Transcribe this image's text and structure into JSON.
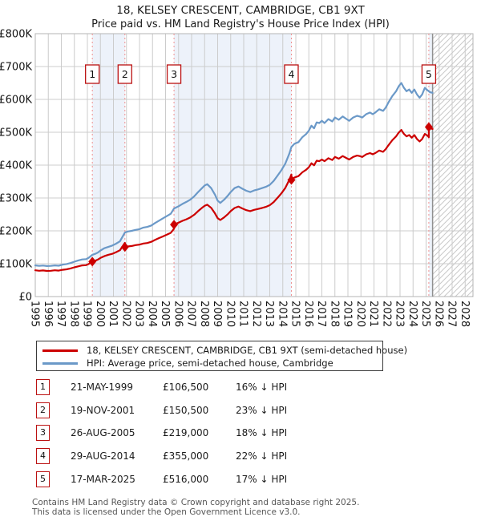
{
  "chart_data": {
    "type": "line",
    "title": "18, KELSEY CRESCENT, CAMBRIDGE, CB1 9XT",
    "subtitle": "Price paid vs. HM Land Registry's House Price Index (HPI)",
    "x_range": [
      1995,
      2028.6
    ],
    "ylim_gbp_thousands": [
      0,
      800
    ],
    "grid": true,
    "legend_position": "below",
    "x_ticks": [
      1995,
      1996,
      1997,
      1998,
      1999,
      2000,
      2001,
      2002,
      2003,
      2004,
      2005,
      2006,
      2007,
      2008,
      2009,
      2010,
      2011,
      2012,
      2013,
      2014,
      2015,
      2016,
      2017,
      2018,
      2019,
      2020,
      2021,
      2022,
      2023,
      2024,
      2025,
      2026,
      2027,
      2028
    ],
    "y_ticks": [
      {
        "value": 0,
        "label": "£0"
      },
      {
        "value": 100,
        "label": "£100K"
      },
      {
        "value": 200,
        "label": "£200K"
      },
      {
        "value": 300,
        "label": "£300K"
      },
      {
        "value": 400,
        "label": "£400K"
      },
      {
        "value": 500,
        "label": "£500K"
      },
      {
        "value": 600,
        "label": "£600K"
      },
      {
        "value": 700,
        "label": "£700K"
      },
      {
        "value": 800,
        "label": "£800K"
      }
    ],
    "ownership_bands": [
      [
        1999.38,
        2001.88
      ],
      [
        2005.65,
        2014.66
      ],
      [
        2025.21,
        2025.5
      ]
    ],
    "end_of_data_x": 2025.5,
    "future_hatch_start": 2025.5,
    "sale_markers": [
      {
        "n": "1",
        "x": 1999.38,
        "price_k": 106.5
      },
      {
        "n": "2",
        "x": 2001.88,
        "price_k": 150.5
      },
      {
        "n": "3",
        "x": 2005.65,
        "price_k": 219
      },
      {
        "n": "4",
        "x": 2014.66,
        "price_k": 355
      },
      {
        "n": "5",
        "x": 2025.21,
        "price_k": 516
      }
    ],
    "series": [
      {
        "name": "HPI: Average price, semi-detached house, Cambridge",
        "color": "#6b99c8",
        "points": [
          [
            1995.0,
            95
          ],
          [
            1995.3,
            93.5
          ],
          [
            1995.6,
            94.5
          ],
          [
            1995.9,
            93
          ],
          [
            1996.2,
            93.5
          ],
          [
            1996.5,
            95
          ],
          [
            1996.8,
            94
          ],
          [
            1997.1,
            97
          ],
          [
            1997.4,
            99
          ],
          [
            1997.7,
            102
          ],
          [
            1998.0,
            106
          ],
          [
            1998.3,
            110
          ],
          [
            1998.6,
            113
          ],
          [
            1998.9,
            114
          ],
          [
            1999.1,
            118
          ],
          [
            1999.38,
            127
          ],
          [
            1999.6,
            130
          ],
          [
            1999.8,
            134
          ],
          [
            2000.0,
            140
          ],
          [
            2000.3,
            147
          ],
          [
            2000.6,
            151
          ],
          [
            2000.9,
            155
          ],
          [
            2001.2,
            161
          ],
          [
            2001.5,
            168
          ],
          [
            2001.88,
            195
          ],
          [
            2002.1,
            198
          ],
          [
            2002.4,
            200
          ],
          [
            2002.7,
            203
          ],
          [
            2003.0,
            205
          ],
          [
            2003.3,
            210
          ],
          [
            2003.6,
            212
          ],
          [
            2003.9,
            216
          ],
          [
            2004.2,
            224
          ],
          [
            2004.5,
            231
          ],
          [
            2004.8,
            238
          ],
          [
            2005.1,
            245
          ],
          [
            2005.4,
            252
          ],
          [
            2005.65,
            268
          ],
          [
            2006.0,
            275
          ],
          [
            2006.3,
            282
          ],
          [
            2006.6,
            288
          ],
          [
            2006.9,
            295
          ],
          [
            2007.2,
            305
          ],
          [
            2007.5,
            318
          ],
          [
            2007.8,
            330
          ],
          [
            2008.0,
            338
          ],
          [
            2008.2,
            342
          ],
          [
            2008.5,
            330
          ],
          [
            2008.8,
            310
          ],
          [
            2009.0,
            292
          ],
          [
            2009.2,
            285
          ],
          [
            2009.5,
            295
          ],
          [
            2009.8,
            308
          ],
          [
            2010.0,
            318
          ],
          [
            2010.3,
            330
          ],
          [
            2010.6,
            335
          ],
          [
            2010.9,
            328
          ],
          [
            2011.2,
            322
          ],
          [
            2011.5,
            318
          ],
          [
            2011.8,
            323
          ],
          [
            2012.1,
            326
          ],
          [
            2012.4,
            330
          ],
          [
            2012.7,
            334
          ],
          [
            2013.0,
            340
          ],
          [
            2013.3,
            352
          ],
          [
            2013.6,
            368
          ],
          [
            2013.9,
            385
          ],
          [
            2014.2,
            405
          ],
          [
            2014.5,
            435
          ],
          [
            2014.66,
            455
          ],
          [
            2014.9,
            465
          ],
          [
            2015.2,
            470
          ],
          [
            2015.5,
            485
          ],
          [
            2015.8,
            495
          ],
          [
            2016.0,
            505
          ],
          [
            2016.2,
            520
          ],
          [
            2016.4,
            512
          ],
          [
            2016.6,
            530
          ],
          [
            2016.8,
            528
          ],
          [
            2017.0,
            535
          ],
          [
            2017.2,
            528
          ],
          [
            2017.5,
            540
          ],
          [
            2017.8,
            533
          ],
          [
            2018.0,
            545
          ],
          [
            2018.3,
            538
          ],
          [
            2018.6,
            548
          ],
          [
            2018.9,
            540
          ],
          [
            2019.1,
            535
          ],
          [
            2019.4,
            545
          ],
          [
            2019.7,
            550
          ],
          [
            2019.9,
            548
          ],
          [
            2020.1,
            545
          ],
          [
            2020.4,
            555
          ],
          [
            2020.7,
            560
          ],
          [
            2020.9,
            555
          ],
          [
            2021.1,
            560
          ],
          [
            2021.4,
            570
          ],
          [
            2021.7,
            565
          ],
          [
            2021.9,
            575
          ],
          [
            2022.1,
            590
          ],
          [
            2022.4,
            610
          ],
          [
            2022.7,
            625
          ],
          [
            2022.9,
            640
          ],
          [
            2023.1,
            650
          ],
          [
            2023.3,
            635
          ],
          [
            2023.5,
            625
          ],
          [
            2023.7,
            630
          ],
          [
            2023.9,
            620
          ],
          [
            2024.1,
            630
          ],
          [
            2024.3,
            615
          ],
          [
            2024.5,
            605
          ],
          [
            2024.7,
            615
          ],
          [
            2024.9,
            635
          ],
          [
            2025.1,
            628
          ],
          [
            2025.3,
            622
          ],
          [
            2025.5,
            620
          ]
        ]
      },
      {
        "name": "18, KELSEY CRESCENT, CAMBRIDGE, CB1 9XT (semi-detached house)",
        "color": "#cc0000",
        "points": [
          [
            1995.0,
            80
          ],
          [
            1995.3,
            78.5
          ],
          [
            1995.6,
            79.5
          ],
          [
            1995.9,
            78
          ],
          [
            1996.2,
            78.5
          ],
          [
            1996.5,
            80
          ],
          [
            1996.8,
            79
          ],
          [
            1997.1,
            81.5
          ],
          [
            1997.4,
            83
          ],
          [
            1997.7,
            85.5
          ],
          [
            1998.0,
            89
          ],
          [
            1998.3,
            92
          ],
          [
            1998.6,
            95
          ],
          [
            1998.9,
            95.5
          ],
          [
            1999.1,
            99
          ],
          [
            1999.38,
            106.5
          ],
          [
            1999.6,
            109
          ],
          [
            1999.8,
            112.5
          ],
          [
            2000.0,
            117.5
          ],
          [
            2000.3,
            123
          ],
          [
            2000.6,
            127
          ],
          [
            2000.9,
            130
          ],
          [
            2001.2,
            135
          ],
          [
            2001.5,
            141
          ],
          [
            2001.88,
            163.5
          ],
          [
            2001.88,
            150.5
          ],
          [
            2002.1,
            152.5
          ],
          [
            2002.4,
            154
          ],
          [
            2002.7,
            156.5
          ],
          [
            2003.0,
            158
          ],
          [
            2003.3,
            161.5
          ],
          [
            2003.6,
            163
          ],
          [
            2003.9,
            166.5
          ],
          [
            2004.2,
            172.5
          ],
          [
            2004.5,
            178
          ],
          [
            2004.8,
            183
          ],
          [
            2005.1,
            188.5
          ],
          [
            2005.4,
            194
          ],
          [
            2005.65,
            206.5
          ],
          [
            2005.65,
            219
          ],
          [
            2006.0,
            225
          ],
          [
            2006.3,
            230.5
          ],
          [
            2006.6,
            235
          ],
          [
            2006.9,
            241
          ],
          [
            2007.2,
            249
          ],
          [
            2007.5,
            260
          ],
          [
            2007.8,
            270
          ],
          [
            2008.0,
            276
          ],
          [
            2008.2,
            279.5
          ],
          [
            2008.5,
            270
          ],
          [
            2008.8,
            253
          ],
          [
            2009.0,
            238.5
          ],
          [
            2009.2,
            233
          ],
          [
            2009.5,
            241
          ],
          [
            2009.8,
            251.5
          ],
          [
            2010.0,
            260
          ],
          [
            2010.3,
            269.5
          ],
          [
            2010.6,
            274
          ],
          [
            2010.9,
            268
          ],
          [
            2011.2,
            263
          ],
          [
            2011.5,
            260
          ],
          [
            2011.8,
            264
          ],
          [
            2012.1,
            266.5
          ],
          [
            2012.4,
            269.5
          ],
          [
            2012.7,
            273
          ],
          [
            2013.0,
            278
          ],
          [
            2013.3,
            287.5
          ],
          [
            2013.6,
            300.5
          ],
          [
            2013.9,
            314.5
          ],
          [
            2014.2,
            331
          ],
          [
            2014.5,
            355
          ],
          [
            2014.66,
            371.5
          ],
          [
            2014.66,
            355
          ],
          [
            2014.9,
            362.5
          ],
          [
            2015.2,
            366.5
          ],
          [
            2015.5,
            378
          ],
          [
            2015.8,
            386
          ],
          [
            2016.0,
            394
          ],
          [
            2016.2,
            405.5
          ],
          [
            2016.4,
            399.5
          ],
          [
            2016.6,
            413.5
          ],
          [
            2016.8,
            412
          ],
          [
            2017.0,
            417
          ],
          [
            2017.2,
            412
          ],
          [
            2017.5,
            421
          ],
          [
            2017.8,
            415.5
          ],
          [
            2018.0,
            425
          ],
          [
            2018.3,
            419.5
          ],
          [
            2018.6,
            427.5
          ],
          [
            2018.9,
            421
          ],
          [
            2019.1,
            417
          ],
          [
            2019.4,
            425
          ],
          [
            2019.7,
            429
          ],
          [
            2019.9,
            427.5
          ],
          [
            2020.1,
            425
          ],
          [
            2020.4,
            433
          ],
          [
            2020.7,
            436.5
          ],
          [
            2020.9,
            433
          ],
          [
            2021.1,
            436.5
          ],
          [
            2021.4,
            444.5
          ],
          [
            2021.7,
            440.5
          ],
          [
            2021.9,
            448.5
          ],
          [
            2022.1,
            460
          ],
          [
            2022.4,
            475.5
          ],
          [
            2022.7,
            487.5
          ],
          [
            2022.9,
            499
          ],
          [
            2023.1,
            507
          ],
          [
            2023.3,
            495
          ],
          [
            2023.5,
            487.5
          ],
          [
            2023.7,
            491.5
          ],
          [
            2023.9,
            483.5
          ],
          [
            2024.1,
            491.5
          ],
          [
            2024.3,
            479.5
          ],
          [
            2024.5,
            472
          ],
          [
            2024.7,
            479.5
          ],
          [
            2024.9,
            495
          ],
          [
            2025.1,
            490
          ],
          [
            2025.21,
            485
          ],
          [
            2025.21,
            516
          ],
          [
            2025.35,
            512
          ],
          [
            2025.5,
            510
          ]
        ]
      }
    ],
    "colors": {
      "band": "#edf2fa",
      "grid": "#cccccc",
      "border": "#b5b5b5",
      "dashed": "#f09090",
      "hatch": "#c9c9c9",
      "end_line": "#909090",
      "marker_box_border": "#bb1111",
      "price_line": "#cc0000",
      "hpi_line": "#6b99c8"
    }
  },
  "legend": {
    "items": [
      {
        "label": "18, KELSEY CRESCENT, CAMBRIDGE, CB1 9XT (semi-detached house)",
        "color": "#cc0000"
      },
      {
        "label": "HPI: Average price, semi-detached house, Cambridge",
        "color": "#6b99c8"
      }
    ]
  },
  "table": {
    "rows": [
      {
        "n": "1",
        "date": "21-MAY-1999",
        "price": "£106,500",
        "vs_hpi": "16% ↓ HPI"
      },
      {
        "n": "2",
        "date": "19-NOV-2001",
        "price": "£150,500",
        "vs_hpi": "23% ↓ HPI"
      },
      {
        "n": "3",
        "date": "26-AUG-2005",
        "price": "£219,000",
        "vs_hpi": "18% ↓ HPI"
      },
      {
        "n": "4",
        "date": "29-AUG-2014",
        "price": "£355,000",
        "vs_hpi": "22% ↓ HPI"
      },
      {
        "n": "5",
        "date": "17-MAR-2025",
        "price": "£516,000",
        "vs_hpi": "17% ↓ HPI"
      }
    ]
  },
  "footer": {
    "line1": "Contains HM Land Registry data © Crown copyright and database right 2025.",
    "line2": "This data is licensed under the Open Government Licence v3.0."
  }
}
